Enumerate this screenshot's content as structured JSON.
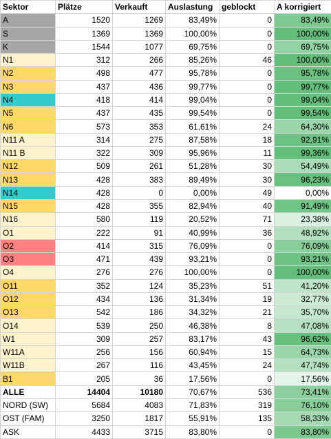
{
  "table": {
    "header": [
      "Sektor",
      "Plätze",
      "Verkauft",
      "Auslastung",
      "geblockt",
      "A korrigiert"
    ],
    "color_scale": [
      "#ffffff",
      "#63be7b"
    ],
    "rows": [
      {
        "sektor": "A",
        "plaetze": 1520,
        "verkauft": 1269,
        "auslastung": "83,49%",
        "geblockt": 0,
        "a_korrigiert": "83,49%",
        "fill": "#a6a6a6"
      },
      {
        "sektor": "S",
        "plaetze": 1369,
        "verkauft": 1369,
        "auslastung": "100,00%",
        "geblockt": 0,
        "a_korrigiert": "100,00%",
        "fill": "#a6a6a6"
      },
      {
        "sektor": "K",
        "plaetze": 1544,
        "verkauft": 1077,
        "auslastung": "69,75%",
        "geblockt": 0,
        "a_korrigiert": "69,75%",
        "fill": "#a6a6a6"
      },
      {
        "sektor": "N1",
        "plaetze": 312,
        "verkauft": 266,
        "auslastung": "85,26%",
        "geblockt": 46,
        "a_korrigiert": "100,00%",
        "fill": "#fff2cc"
      },
      {
        "sektor": "N2",
        "plaetze": 498,
        "verkauft": 477,
        "auslastung": "95,78%",
        "geblockt": 0,
        "a_korrigiert": "95,78%",
        "fill": "#ffd966"
      },
      {
        "sektor": "N3",
        "plaetze": 437,
        "verkauft": 436,
        "auslastung": "99,77%",
        "geblockt": 0,
        "a_korrigiert": "99,77%",
        "fill": "#ffd966"
      },
      {
        "sektor": "N4",
        "plaetze": 418,
        "verkauft": 414,
        "auslastung": "99,04%",
        "geblockt": 0,
        "a_korrigiert": "99,04%",
        "fill": "#33cccc"
      },
      {
        "sektor": "N5",
        "plaetze": 437,
        "verkauft": 435,
        "auslastung": "99,54%",
        "geblockt": 0,
        "a_korrigiert": "99,54%",
        "fill": "#ffd966"
      },
      {
        "sektor": "N6",
        "plaetze": 573,
        "verkauft": 353,
        "auslastung": "61,61%",
        "geblockt": 24,
        "a_korrigiert": "64,30%",
        "fill": "#ffd966"
      },
      {
        "sektor": "N11 A",
        "plaetze": 314,
        "verkauft": 275,
        "auslastung": "87,58%",
        "geblockt": 18,
        "a_korrigiert": "92,91%",
        "fill": "#fff2cc"
      },
      {
        "sektor": "N11 B",
        "plaetze": 322,
        "verkauft": 309,
        "auslastung": "95,96%",
        "geblockt": 11,
        "a_korrigiert": "99,36%",
        "fill": "#fff2cc"
      },
      {
        "sektor": "N12",
        "plaetze": 509,
        "verkauft": 261,
        "auslastung": "51,28%",
        "geblockt": 30,
        "a_korrigiert": "54,49%",
        "fill": "#ffd966"
      },
      {
        "sektor": "N13",
        "plaetze": 428,
        "verkauft": 383,
        "auslastung": "89,49%",
        "geblockt": 30,
        "a_korrigiert": "96,23%",
        "fill": "#ffd966"
      },
      {
        "sektor": "N14",
        "plaetze": 428,
        "verkauft": 0,
        "auslastung": "0,00%",
        "geblockt": 49,
        "a_korrigiert": "0,00%",
        "fill": "#33cccc"
      },
      {
        "sektor": "N15",
        "plaetze": 428,
        "verkauft": 355,
        "auslastung": "82,94%",
        "geblockt": 40,
        "a_korrigiert": "91,49%",
        "fill": "#ffd966"
      },
      {
        "sektor": "N16",
        "plaetze": 580,
        "verkauft": 119,
        "auslastung": "20,52%",
        "geblockt": 71,
        "a_korrigiert": "23,38%",
        "fill": "#fff2cc"
      },
      {
        "sektor": "O1",
        "plaetze": 222,
        "verkauft": 91,
        "auslastung": "40,99%",
        "geblockt": 36,
        "a_korrigiert": "48,92%",
        "fill": "#fff2cc"
      },
      {
        "sektor": "O2",
        "plaetze": 414,
        "verkauft": 315,
        "auslastung": "76,09%",
        "geblockt": 0,
        "a_korrigiert": "76,09%",
        "fill": "#ff8080"
      },
      {
        "sektor": "O3",
        "plaetze": 471,
        "verkauft": 439,
        "auslastung": "93,21%",
        "geblockt": 0,
        "a_korrigiert": "93,21%",
        "fill": "#ff8080"
      },
      {
        "sektor": "O4",
        "plaetze": 276,
        "verkauft": 276,
        "auslastung": "100,00%",
        "geblockt": 0,
        "a_korrigiert": "100,00%",
        "fill": "#fff2cc"
      },
      {
        "sektor": "O11",
        "plaetze": 352,
        "verkauft": 124,
        "auslastung": "35,23%",
        "geblockt": 51,
        "a_korrigiert": "41,20%",
        "fill": "#ffd966"
      },
      {
        "sektor": "O12",
        "plaetze": 434,
        "verkauft": 136,
        "auslastung": "31,34%",
        "geblockt": 19,
        "a_korrigiert": "32,77%",
        "fill": "#ffd966"
      },
      {
        "sektor": "O13",
        "plaetze": 542,
        "verkauft": 186,
        "auslastung": "34,32%",
        "geblockt": 21,
        "a_korrigiert": "35,70%",
        "fill": "#ffd966"
      },
      {
        "sektor": "O14",
        "plaetze": 539,
        "verkauft": 250,
        "auslastung": "46,38%",
        "geblockt": 8,
        "a_korrigiert": "47,08%",
        "fill": "#fff2cc"
      },
      {
        "sektor": "W1",
        "plaetze": 309,
        "verkauft": 257,
        "auslastung": "83,17%",
        "geblockt": 43,
        "a_korrigiert": "96,62%",
        "fill": "#fff2cc"
      },
      {
        "sektor": "W11A",
        "plaetze": 256,
        "verkauft": 156,
        "auslastung": "60,94%",
        "geblockt": 15,
        "a_korrigiert": "64,73%",
        "fill": "#fff2cc"
      },
      {
        "sektor": "W11B",
        "plaetze": 267,
        "verkauft": 116,
        "auslastung": "43,45%",
        "geblockt": 24,
        "a_korrigiert": "47,74%",
        "fill": "#fff2cc"
      },
      {
        "sektor": "B1",
        "plaetze": 205,
        "verkauft": 36,
        "auslastung": "17,56%",
        "geblockt": 0,
        "a_korrigiert": "17,56%",
        "fill": "#ffd966"
      },
      {
        "sektor": "ALLE",
        "plaetze": 14404,
        "verkauft": 10180,
        "auslastung": "70,67%",
        "geblockt": 536,
        "a_korrigiert": "73,41%",
        "bold": true
      },
      {
        "sektor": "NORD (SW)",
        "plaetze": 5684,
        "verkauft": 4083,
        "auslastung": "71,83%",
        "geblockt": 319,
        "a_korrigiert": "76,10%"
      },
      {
        "sektor": "OST (FAM)",
        "plaetze": 3250,
        "verkauft": 1817,
        "auslastung": "55,91%",
        "geblockt": 135,
        "a_korrigiert": "58,33%"
      },
      {
        "sektor": "ASK",
        "plaetze": 4433,
        "verkauft": 3715,
        "auslastung": "83,80%",
        "geblockt": 0,
        "a_korrigiert": "83,80%"
      }
    ]
  }
}
